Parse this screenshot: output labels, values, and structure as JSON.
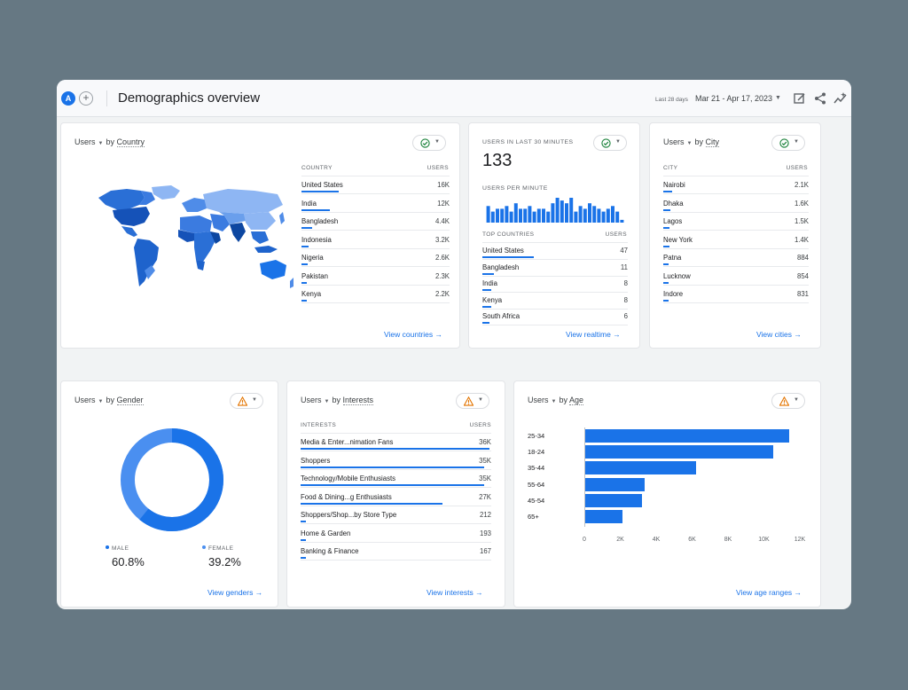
{
  "header": {
    "avatar_letter": "A",
    "add_symbol": "+",
    "title": "Demographics overview",
    "date_label": "Last 28 days",
    "date_range": "Mar 21 - Apr 17, 2023",
    "icons": [
      "edit-report-icon",
      "share-icon",
      "insights-icon"
    ]
  },
  "country_card": {
    "title_metric": "Users",
    "title_by": "by",
    "title_dimension": "Country",
    "status": "ok",
    "col_label": "COUNTRY",
    "col_value": "USERS",
    "rows": [
      {
        "label": "United States",
        "value": "16K",
        "share": 1.0
      },
      {
        "label": "India",
        "value": "12K",
        "share": 0.75
      },
      {
        "label": "Bangladesh",
        "value": "4.4K",
        "share": 0.28
      },
      {
        "label": "Indonesia",
        "value": "3.2K",
        "share": 0.2
      },
      {
        "label": "Nigeria",
        "value": "2.6K",
        "share": 0.16
      },
      {
        "label": "Pakistan",
        "value": "2.3K",
        "share": 0.14
      },
      {
        "label": "Kenya",
        "value": "2.2K",
        "share": 0.14
      }
    ],
    "link": "View countries"
  },
  "realtime_card": {
    "label": "USERS IN LAST 30 MINUTES",
    "value": "133",
    "per_minute_label": "USERS PER MINUTE",
    "per_minute": [
      6,
      4,
      5,
      5,
      6,
      4,
      7,
      5,
      5,
      6,
      4,
      5,
      5,
      4,
      7,
      9,
      8,
      7,
      9,
      4,
      6,
      5,
      7,
      6,
      5,
      4,
      5,
      6,
      4,
      1
    ],
    "col_label": "TOP COUNTRIES",
    "col_value": "USERS",
    "rows": [
      {
        "label": "United States",
        "value": "47",
        "share": 1.0
      },
      {
        "label": "Bangladesh",
        "value": "11",
        "share": 0.23
      },
      {
        "label": "India",
        "value": "8",
        "share": 0.17
      },
      {
        "label": "Kenya",
        "value": "8",
        "share": 0.17
      },
      {
        "label": "South Africa",
        "value": "6",
        "share": 0.13
      }
    ],
    "link": "View realtime"
  },
  "city_card": {
    "title_metric": "Users",
    "title_by": "by",
    "title_dimension": "City",
    "status": "ok",
    "col_label": "CITY",
    "col_value": "USERS",
    "rows": [
      {
        "label": "Nairobi",
        "value": "2.1K",
        "share": 0.24
      },
      {
        "label": "Dhaka",
        "value": "1.6K",
        "share": 0.18
      },
      {
        "label": "Lagos",
        "value": "1.5K",
        "share": 0.17
      },
      {
        "label": "New York",
        "value": "1.4K",
        "share": 0.16
      },
      {
        "label": "Patna",
        "value": "884",
        "share": 0.1
      },
      {
        "label": "Lucknow",
        "value": "854",
        "share": 0.1
      },
      {
        "label": "Indore",
        "value": "831",
        "share": 0.09
      }
    ],
    "link": "View cities"
  },
  "gender_card": {
    "title_metric": "Users",
    "title_by": "by",
    "title_dimension": "Gender",
    "status": "warning",
    "male_label": "MALE",
    "male_value": "60.8%",
    "female_label": "FEMALE",
    "female_value": "39.2%",
    "male_fraction": 0.608,
    "colors": {
      "male": "#1a73e8",
      "female": "#4a8ff0"
    },
    "link": "View genders"
  },
  "interests_card": {
    "title_metric": "Users",
    "title_by": "by",
    "title_dimension": "Interests",
    "status": "warning",
    "col_label": "INTERESTS",
    "col_value": "USERS",
    "rows": [
      {
        "label": "Media & Enter...nimation Fans",
        "value": "36K",
        "share": 1.0
      },
      {
        "label": "Shoppers",
        "value": "35K",
        "share": 0.97
      },
      {
        "label": "Technology/Mobile Enthusiasts",
        "value": "35K",
        "share": 0.97
      },
      {
        "label": "Food & Dining...g Enthusiasts",
        "value": "27K",
        "share": 0.75
      },
      {
        "label": "Shoppers/Shop...by Store Type",
        "value": "212",
        "share": 0.0
      },
      {
        "label": "Home & Garden",
        "value": "193",
        "share": 0.0
      },
      {
        "label": "Banking & Finance",
        "value": "167",
        "share": 0.0
      }
    ],
    "link": "View interests"
  },
  "age_card": {
    "title_metric": "Users",
    "title_by": "by",
    "title_dimension": "Age",
    "status": "warning",
    "link": "View age ranges"
  },
  "chart_data": {
    "type": "bar",
    "orientation": "horizontal",
    "categories": [
      "25-34",
      "18-24",
      "35-44",
      "55-64",
      "45-54",
      "65+"
    ],
    "values": [
      11400,
      10500,
      6200,
      3350,
      3200,
      2100
    ],
    "xlim": [
      0,
      12000
    ],
    "xticks": [
      "0",
      "2K",
      "4K",
      "6K",
      "8K",
      "10K",
      "12K"
    ],
    "color": "#1a73e8"
  },
  "colors": {
    "accent": "#1a73e8",
    "ok": "#188038",
    "warning": "#e37400"
  }
}
